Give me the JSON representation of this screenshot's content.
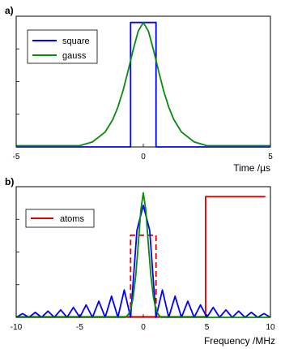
{
  "chart_data": [
    {
      "panel_label": "a)",
      "type": "line",
      "xlabel": "Time /µs",
      "ylabel": "",
      "xlim": [
        -5,
        5
      ],
      "ylim": [
        0,
        1.05
      ],
      "xticks": [
        "-5",
        "0",
        "5"
      ],
      "grid": false,
      "legend_position": "top-left",
      "series": [
        {
          "name": "square",
          "color": "#0000ff",
          "x": [
            -5,
            -0.5,
            -0.5,
            0.5,
            0.5,
            5
          ],
          "y": [
            0,
            0,
            1,
            1,
            0,
            0
          ]
        },
        {
          "name": "gauss",
          "color": "#0a8a0a",
          "x": [
            -5,
            -2.5,
            -2,
            -1.5,
            -1.2,
            -1,
            -0.8,
            -0.6,
            -0.4,
            -0.2,
            0,
            0.2,
            0.4,
            0.6,
            0.8,
            1,
            1.2,
            1.5,
            2,
            2.5,
            5
          ],
          "y": [
            0.01,
            0.01,
            0.04,
            0.12,
            0.22,
            0.32,
            0.45,
            0.61,
            0.78,
            0.93,
            1.0,
            0.93,
            0.78,
            0.61,
            0.45,
            0.32,
            0.22,
            0.12,
            0.04,
            0.01,
            0.01
          ]
        }
      ]
    },
    {
      "panel_label": "b)",
      "type": "line",
      "xlabel": "Frequency /MHz",
      "ylabel": "",
      "xlim": [
        -10,
        10
      ],
      "ylim": [
        0,
        1.05
      ],
      "xticks": [
        "-10",
        "-5",
        "0",
        "5",
        "10"
      ],
      "grid": false,
      "legend_position": "top-left",
      "series": [
        {
          "name": "atoms",
          "color": "#dd0000",
          "x": [
            -10,
            4.9,
            4.9,
            9.6
          ],
          "y": [
            0.005,
            0.005,
            0.97,
            0.97
          ]
        },
        {
          "name": "",
          "color": "#dd0000",
          "dashed": true,
          "x": [
            -1.0,
            -1.0,
            1.0,
            1.0
          ],
          "y": [
            0.005,
            0.66,
            0.66,
            0.005
          ]
        },
        {
          "name": "",
          "color": "#0000ff",
          "x": [
            -10,
            -9.5,
            -9,
            -8.5,
            -8,
            -7.5,
            -7,
            -6.5,
            -6,
            -5.5,
            -5,
            -4.5,
            -4,
            -3.5,
            -3,
            -2.5,
            -2,
            -1.5,
            -1,
            -0.5,
            0,
            0.5,
            1,
            1.5,
            2,
            2.5,
            3,
            3.5,
            4,
            4.5,
            5,
            5.5,
            6,
            6.5,
            7,
            7.5,
            8,
            8.5,
            9,
            9.5,
            10
          ],
          "y": [
            0.0,
            0.03,
            0.0,
            0.04,
            0.0,
            0.05,
            0.0,
            0.06,
            0.0,
            0.08,
            0.0,
            0.1,
            0.0,
            0.13,
            0.0,
            0.17,
            0.0,
            0.22,
            0.0,
            0.7,
            0.9,
            0.7,
            0.0,
            0.22,
            0.0,
            0.17,
            0.0,
            0.13,
            0.0,
            0.1,
            0.0,
            0.08,
            0.0,
            0.06,
            0.0,
            0.05,
            0.0,
            0.04,
            0.0,
            0.03,
            0.0
          ]
        },
        {
          "name": "",
          "color": "#0a8a0a",
          "x": [
            -10,
            -1.4,
            -1.2,
            -1,
            -0.8,
            -0.6,
            -0.4,
            -0.2,
            0,
            0.2,
            0.4,
            0.6,
            0.8,
            1,
            1.2,
            1.4,
            10
          ],
          "y": [
            0.0,
            0.0,
            0.02,
            0.06,
            0.16,
            0.33,
            0.58,
            0.86,
            1.0,
            0.86,
            0.58,
            0.33,
            0.16,
            0.06,
            0.02,
            0.0,
            0.0
          ]
        }
      ]
    }
  ]
}
